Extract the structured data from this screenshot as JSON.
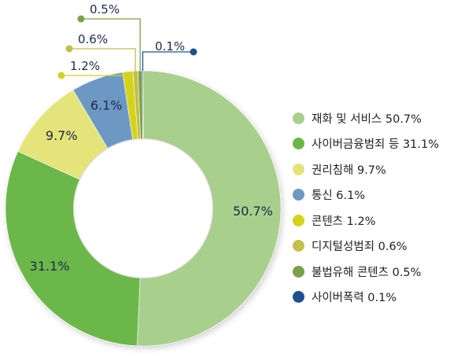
{
  "chart_data": {
    "type": "pie",
    "title": "",
    "categories": [
      "재화 및 서비스",
      "사이버금융범죄 등",
      "권리침해",
      "통신",
      "콘텐츠",
      "디지털성범죄",
      "불법유해 콘텐츠",
      "사이버폭력"
    ],
    "values": [
      50.7,
      31.1,
      9.7,
      6.1,
      1.2,
      0.6,
      0.5,
      0.1
    ],
    "unit": "%",
    "slice_labels": [
      "50.7%",
      "31.1%",
      "9.7%",
      "6.1%",
      "1.2%",
      "0.6%",
      "0.5%",
      "0.1%"
    ],
    "legend_entries": [
      "재화 및 서비스 50.7%",
      "사이버금융범죄 등 31.1%",
      "권리침해 9.7%",
      "통신 6.1%",
      "콘텐츠 1.2%",
      "디지털성범죄 0.6%",
      "불법유해 콘텐츠 0.5%",
      "사이버폭력 0.1%"
    ],
    "colors": [
      "#a9cf8d",
      "#6cb749",
      "#e4e47a",
      "#6e98c4",
      "#d3d31c",
      "#c3bf4a",
      "#7aa04c",
      "#1f4f8f"
    ],
    "legend_position": "right",
    "donut": true
  }
}
